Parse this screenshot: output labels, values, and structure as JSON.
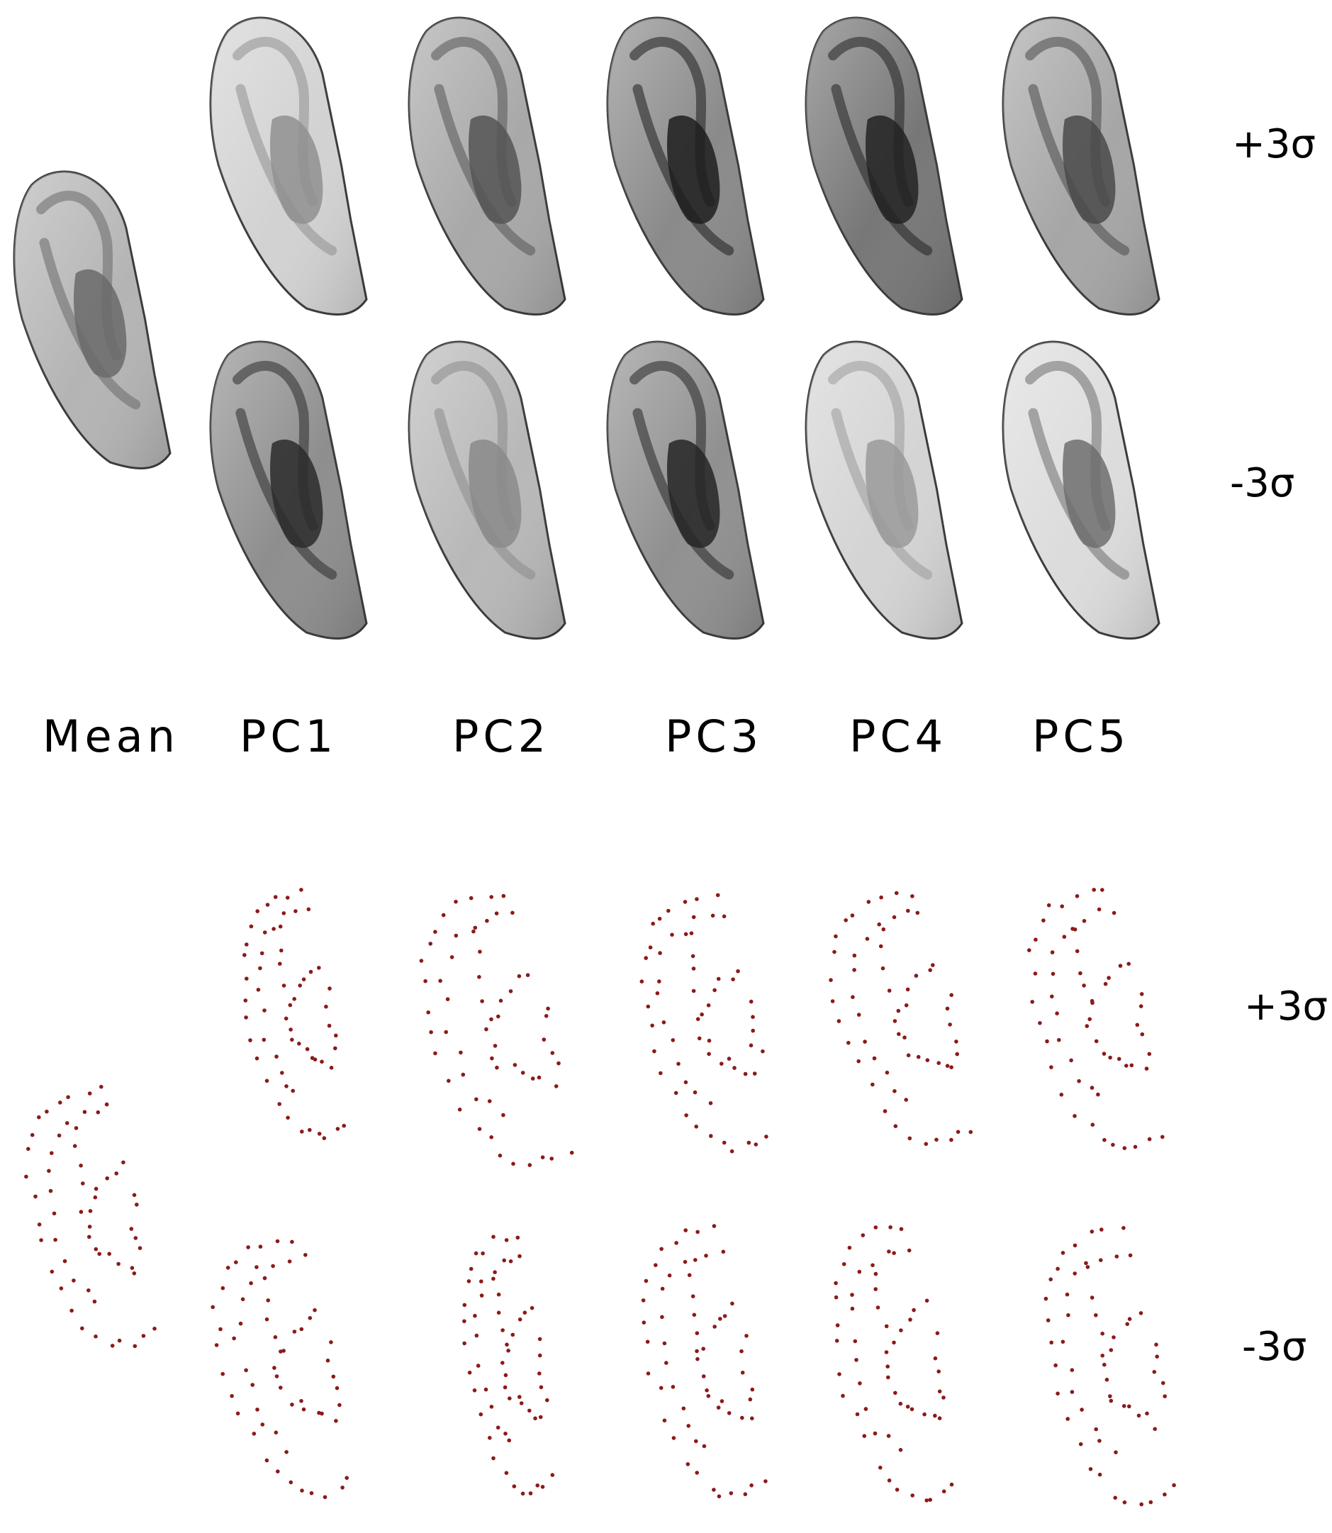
{
  "figure": {
    "texture_section": {
      "row_labels": {
        "plus": "+3σ",
        "minus": "-3σ"
      }
    },
    "column_labels": [
      "Mean",
      "PC1",
      "PC2",
      "PC3",
      "PC4",
      "PC5"
    ],
    "shape_section": {
      "row_labels": {
        "plus": "+3σ",
        "minus": "-3σ"
      },
      "landmark_color": "#8b1a1a"
    },
    "texture_variants": [
      {
        "id": "mean",
        "shade": "#b4b4b4",
        "cavity": "#6a6a6a"
      },
      {
        "id": "pc1-plus",
        "shade": "#d2d2d2",
        "cavity": "#909090"
      },
      {
        "id": "pc1-minus",
        "shade": "#8e8e8e",
        "cavity": "#2c2c2c"
      },
      {
        "id": "pc2-plus",
        "shade": "#a8a8a8",
        "cavity": "#555555"
      },
      {
        "id": "pc2-minus",
        "shade": "#b8b8b8",
        "cavity": "#8a8a8a"
      },
      {
        "id": "pc3-plus",
        "shade": "#8a8a8a",
        "cavity": "#1e1e1e"
      },
      {
        "id": "pc3-minus",
        "shade": "#909090",
        "cavity": "#262626"
      },
      {
        "id": "pc4-plus",
        "shade": "#777777",
        "cavity": "#232323"
      },
      {
        "id": "pc4-minus",
        "shade": "#d4d4d4",
        "cavity": "#9a9a9a"
      },
      {
        "id": "pc5-plus",
        "shade": "#a6a6a6",
        "cavity": "#4a4a4a"
      },
      {
        "id": "pc5-minus",
        "shade": "#dcdcdc",
        "cavity": "#6e6e6e"
      }
    ]
  }
}
